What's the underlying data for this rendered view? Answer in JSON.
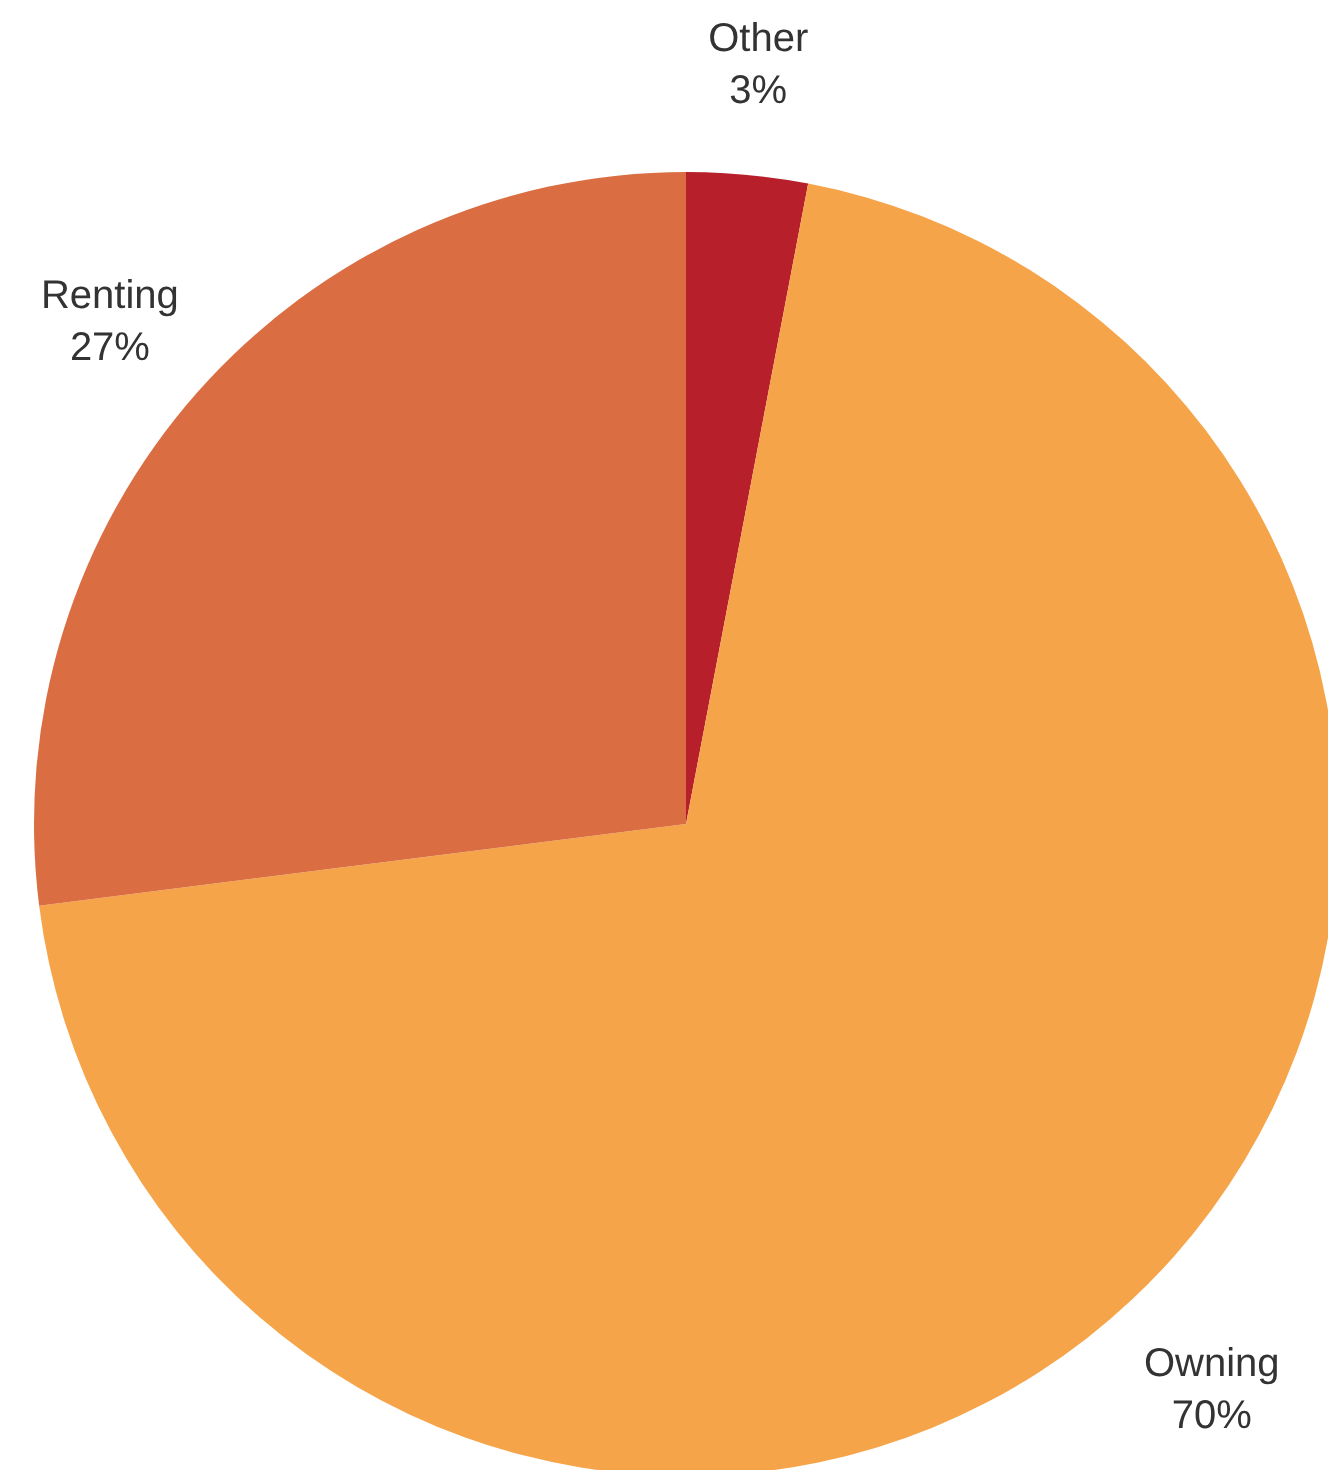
{
  "chart_data": {
    "type": "pie",
    "categories": [
      "Other",
      "Owning",
      "Renting"
    ],
    "values": [
      3,
      70,
      27
    ],
    "value_labels": [
      "3%",
      "70%",
      "27%"
    ],
    "colors": [
      "#b7202b",
      "#f6a449",
      "#da6e42"
    ],
    "legend": false
  }
}
